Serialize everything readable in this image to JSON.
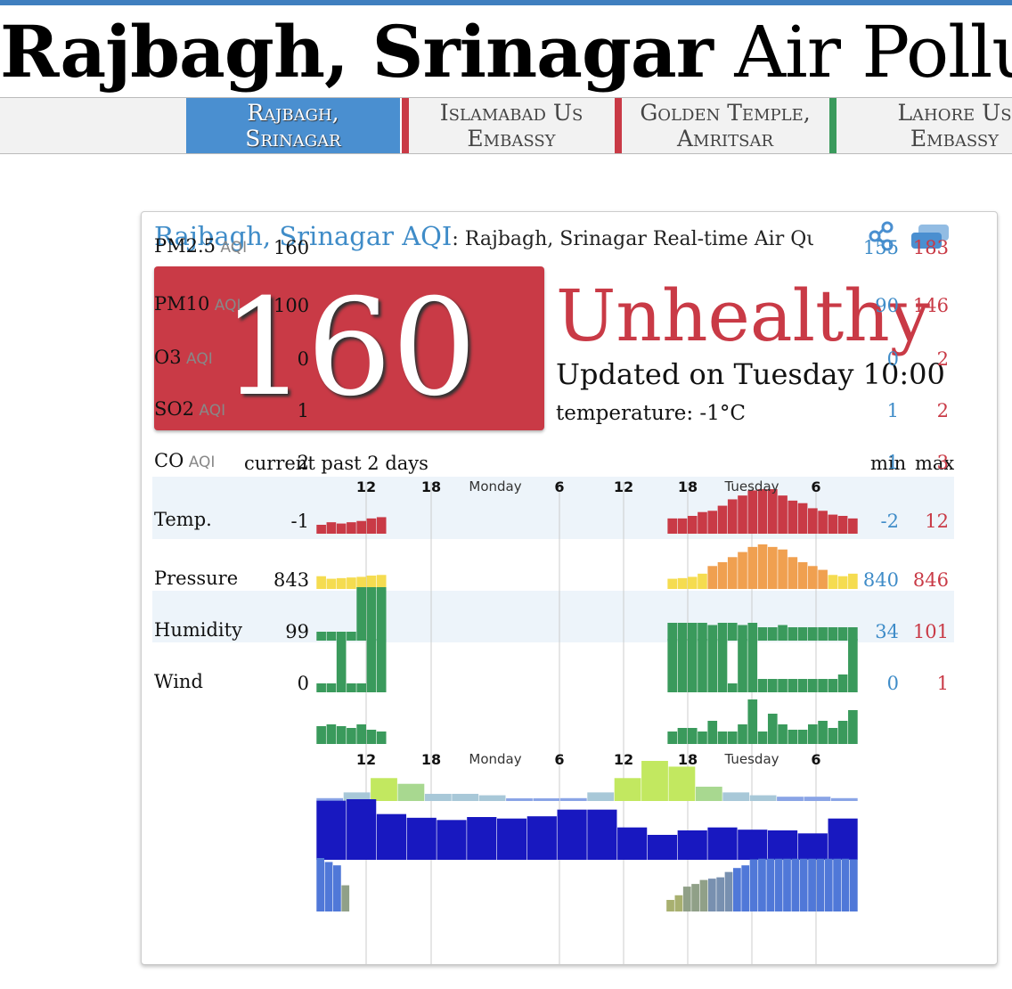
{
  "page": {
    "title_bold": "Rajbagh, Srinagar",
    "title_rest": " Air Pollution:"
  },
  "tabs": [
    {
      "line1": "Rajbagh,",
      "line2": "Srinagar",
      "active": true,
      "accent": "#4a8fd0"
    },
    {
      "line1": "Islamabad Us",
      "line2": "Embassy",
      "active": false,
      "accent": "#c93a46"
    },
    {
      "line1": "Golden Temple,",
      "line2": "Amritsar",
      "active": false,
      "accent": "#c93a46"
    },
    {
      "line1": "Lahore Us",
      "line2": "Embassy",
      "active": false,
      "accent": "#3a9a5c"
    }
  ],
  "card": {
    "heading_link": "Rajbagh, Srinagar AQI",
    "heading_sub": ": Rajbagh, Srinagar Real-time Air Qua",
    "aqi": "160",
    "status": "Unhealthy",
    "updated": "Updated on Tuesday 10:00",
    "temperature": "temperature: -1°C",
    "icons": [
      "share-icon",
      "cards-icon"
    ]
  },
  "table": {
    "col_current_past": "current past 2 days",
    "col_min": "min",
    "col_max": "max",
    "time_ticks": [
      "12",
      "18",
      "Monday",
      "6",
      "12",
      "18",
      "Tuesday",
      "6"
    ]
  },
  "colors": {
    "unhealthy": "#c93a46",
    "moderate": "#f5dc50",
    "unhealthy_sensitive": "#f0a050",
    "good": "#3a9a5c",
    "pressure": "#1e1ec8",
    "humidity": "#4a78d8",
    "link": "#3f8cc8"
  },
  "chart_data": [
    {
      "type": "bar",
      "name": "PM2.5",
      "unit": "AQI",
      "current": "160",
      "min": "155",
      "max": "183",
      "values": [
        155,
        157,
        156,
        157,
        158,
        160,
        161,
        null,
        null,
        null,
        null,
        null,
        null,
        null,
        null,
        null,
        null,
        null,
        null,
        null,
        null,
        null,
        null,
        null,
        null,
        null,
        null,
        null,
        null,
        null,
        null,
        null,
        null,
        null,
        null,
        160,
        160,
        162,
        165,
        166,
        170,
        175,
        178,
        182,
        183,
        183,
        178,
        174,
        172,
        168,
        166,
        163,
        162,
        160
      ]
    },
    {
      "type": "bar",
      "name": "PM10",
      "unit": "AQI",
      "current": "100",
      "min": "90",
      "max": "146",
      "values": [
        96,
        92,
        93,
        94,
        95,
        97,
        98,
        null,
        null,
        null,
        null,
        null,
        null,
        null,
        null,
        null,
        null,
        null,
        null,
        null,
        null,
        null,
        null,
        null,
        null,
        null,
        null,
        null,
        null,
        null,
        null,
        null,
        null,
        null,
        null,
        92,
        93,
        95,
        100,
        112,
        118,
        126,
        134,
        142,
        146,
        142,
        138,
        126,
        118,
        112,
        106,
        98,
        96,
        100
      ]
    },
    {
      "type": "bar",
      "name": "O3",
      "unit": "AQI",
      "current": "0",
      "min": "0",
      "max": "2",
      "values": [
        0,
        0,
        0,
        0,
        2,
        2,
        2,
        null,
        null,
        null,
        null,
        null,
        null,
        null,
        null,
        null,
        null,
        null,
        null,
        null,
        null,
        null,
        null,
        null,
        null,
        null,
        null,
        null,
        null,
        null,
        null,
        null,
        null,
        null,
        null,
        0.4,
        0.4,
        0.4,
        0.4,
        0.3,
        0.4,
        0.4,
        0.3,
        0.4,
        0.2,
        0.2,
        0.3,
        0.2,
        0.2,
        0.2,
        0.2,
        0.2,
        0.2,
        0.2
      ]
    },
    {
      "type": "bar",
      "name": "SO2",
      "unit": "AQI",
      "current": "1",
      "min": "1",
      "max": "2",
      "values": [
        1,
        1,
        2,
        1,
        1,
        2,
        2,
        null,
        null,
        null,
        null,
        null,
        null,
        null,
        null,
        null,
        null,
        null,
        null,
        null,
        null,
        null,
        null,
        null,
        null,
        null,
        null,
        null,
        null,
        null,
        null,
        null,
        null,
        null,
        null,
        2,
        2,
        2,
        2,
        2,
        2,
        1,
        2,
        2,
        1.1,
        1.1,
        1.1,
        1.1,
        1.1,
        1.1,
        1.1,
        1.1,
        1.2,
        2
      ]
    },
    {
      "type": "bar",
      "name": "CO",
      "unit": "AQI",
      "current": "2",
      "min": "1",
      "max": "3",
      "values": [
        1.5,
        1.6,
        1.5,
        1.4,
        1.6,
        1.3,
        1.2,
        null,
        null,
        null,
        null,
        null,
        null,
        null,
        null,
        null,
        null,
        null,
        null,
        null,
        null,
        null,
        null,
        null,
        null,
        null,
        null,
        null,
        null,
        null,
        null,
        null,
        null,
        null,
        null,
        1.2,
        1.4,
        1.4,
        1.2,
        1.8,
        1.2,
        1.2,
        1.6,
        3,
        1.2,
        2.2,
        1.6,
        1.3,
        1.3,
        1.6,
        1.8,
        1.4,
        1.8,
        2.4
      ]
    },
    {
      "type": "bar",
      "name": "Temp.",
      "unit": "",
      "current": "-1",
      "min": "-2",
      "max": "12",
      "values": [
        -1,
        1,
        6,
        4,
        0.5,
        0.5,
        0,
        -1.5,
        -2,
        -1,
        1,
        6,
        12,
        10,
        3,
        1,
        0,
        -0.5,
        -0.5,
        -1
      ]
    },
    {
      "type": "bar",
      "name": "Pressure",
      "unit": "",
      "current": "843",
      "min": "840",
      "max": "846",
      "values": [
        845.8,
        846,
        844,
        843.5,
        843.2,
        843.6,
        843.4,
        843.7,
        844.6,
        844.6,
        842.2,
        841.2,
        841.8,
        842.2,
        841.9,
        841.8,
        841.4,
        843.4
      ]
    },
    {
      "type": "bar",
      "name": "Humidity",
      "unit": "",
      "current": "99",
      "min": "34",
      "max": "101",
      "values": [
        101,
        95,
        90,
        60,
        null,
        null,
        null,
        null,
        null,
        null,
        null,
        null,
        null,
        null,
        null,
        null,
        null,
        null,
        null,
        null,
        null,
        null,
        null,
        null,
        null,
        null,
        null,
        null,
        null,
        null,
        null,
        null,
        null,
        null,
        null,
        null,
        null,
        null,
        null,
        null,
        null,
        null,
        38,
        45,
        58,
        62,
        68,
        70,
        72,
        80,
        86,
        90,
        99,
        100,
        100,
        100,
        100,
        100,
        100,
        100,
        100,
        100,
        100,
        100,
        99
      ]
    },
    {
      "type": "bar",
      "name": "Wind",
      "unit": "",
      "current": "0",
      "min": "0",
      "max": "1",
      "values": []
    }
  ]
}
